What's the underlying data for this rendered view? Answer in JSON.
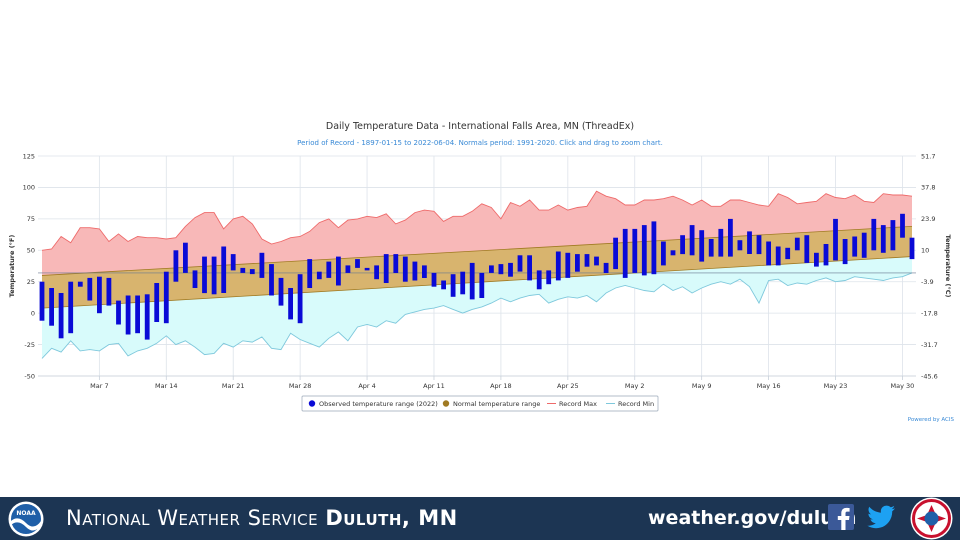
{
  "chart_data": {
    "type": "bar",
    "title": "Daily Temperature Data - International Falls Area, MN (ThreadEx)",
    "subtitle": "Period of Record - 1897-01-15 to 2022-06-04. Normals period: 1991-2020. Click and drag to zoom chart.",
    "ylabel_left": "Temperature (°F)",
    "ylabel_right": "Temperature (°C)",
    "ylim": [
      -50,
      125
    ],
    "yticks_left": [
      125,
      100,
      75,
      50,
      25,
      0,
      -25,
      -50
    ],
    "yticks_right": [
      "51.7",
      "37.8",
      "23.9",
      "10",
      "-3.9",
      "-17.8",
      "-31.7",
      "-45.6"
    ],
    "x_start": "Mar 1",
    "x_ticks": [
      {
        "label": "Mar 7",
        "day": 6
      },
      {
        "label": "Mar 14",
        "day": 13
      },
      {
        "label": "Mar 21",
        "day": 20
      },
      {
        "label": "Mar 28",
        "day": 27
      },
      {
        "label": "Apr 4",
        "day": 34
      },
      {
        "label": "Apr 11",
        "day": 41
      },
      {
        "label": "Apr 18",
        "day": 48
      },
      {
        "label": "Apr 25",
        "day": 55
      },
      {
        "label": "May 2",
        "day": 62
      },
      {
        "label": "May 9",
        "day": 69
      },
      {
        "label": "May 16",
        "day": 76
      },
      {
        "label": "May 23",
        "day": 83
      },
      {
        "label": "May 30",
        "day": 90
      }
    ],
    "freezing_line": 32,
    "normal_range": {
      "start_high": 30,
      "end_high": 69,
      "start_low": 4,
      "end_low": 45
    },
    "record_max": [
      50,
      51,
      61,
      56,
      68,
      68,
      67,
      57,
      63,
      57,
      61,
      60,
      60,
      59,
      60,
      69,
      76,
      80,
      80,
      67,
      75,
      77,
      71,
      59,
      55,
      57,
      60,
      61,
      65,
      72,
      75,
      68,
      74,
      75,
      77,
      76,
      79,
      71,
      74,
      80,
      82,
      81,
      73,
      77,
      77,
      81,
      87,
      84,
      75,
      88,
      85,
      90,
      82,
      82,
      86,
      82,
      84,
      85,
      97,
      93,
      91,
      86,
      86,
      90,
      90,
      91,
      93,
      90,
      86,
      90,
      85,
      85,
      90,
      90,
      88,
      86,
      85,
      95,
      92,
      87,
      88,
      89,
      95,
      92,
      91,
      94,
      89,
      88,
      95,
      94,
      94,
      93
    ],
    "record_min": [
      -36,
      -28,
      -31,
      -22,
      -30,
      -29,
      -30,
      -25,
      -24,
      -34,
      -30,
      -28,
      -24,
      -18,
      -25,
      -22,
      -27,
      -33,
      -32,
      -24,
      -27,
      -22,
      -23,
      -19,
      -28,
      -29,
      -16,
      -21,
      -24,
      -27,
      -20,
      -15,
      -22,
      -11,
      -9,
      -11,
      -6,
      -8,
      -1,
      1,
      3,
      4,
      6,
      3,
      0,
      3,
      5,
      8,
      12,
      9,
      12,
      14,
      15,
      8,
      11,
      13,
      12,
      14,
      9,
      16,
      20,
      22,
      20,
      18,
      17,
      23,
      18,
      21,
      16,
      20,
      23,
      25,
      23,
      27,
      21,
      8,
      26,
      27,
      22,
      24,
      23,
      26,
      28,
      25,
      26,
      29,
      28,
      27,
      26,
      28,
      29,
      32
    ],
    "observed": [
      {
        "low": -6,
        "high": 25
      },
      {
        "low": -10,
        "high": 20
      },
      {
        "low": -20,
        "high": 16
      },
      {
        "low": -16,
        "high": 25
      },
      {
        "low": 21,
        "high": 25
      },
      {
        "low": 10,
        "high": 28
      },
      {
        "low": 0,
        "high": 29
      },
      {
        "low": 6,
        "high": 28
      },
      {
        "low": -9,
        "high": 10
      },
      {
        "low": -17,
        "high": 14
      },
      {
        "low": -16,
        "high": 14
      },
      {
        "low": -21,
        "high": 15
      },
      {
        "low": -7,
        "high": 24
      },
      {
        "low": -8,
        "high": 33
      },
      {
        "low": 25,
        "high": 50
      },
      {
        "low": 32,
        "high": 56
      },
      {
        "low": 20,
        "high": 34
      },
      {
        "low": 16,
        "high": 45
      },
      {
        "low": 15,
        "high": 45
      },
      {
        "low": 16,
        "high": 53
      },
      {
        "low": 34,
        "high": 47
      },
      {
        "low": 32,
        "high": 36
      },
      {
        "low": 31,
        "high": 35
      },
      {
        "low": 28,
        "high": 48
      },
      {
        "low": 14,
        "high": 39
      },
      {
        "low": 6,
        "high": 28
      },
      {
        "low": -5,
        "high": 20
      },
      {
        "low": -8,
        "high": 31
      },
      {
        "low": 20,
        "high": 43
      },
      {
        "low": 27,
        "high": 33
      },
      {
        "low": 28,
        "high": 41
      },
      {
        "low": 22,
        "high": 45
      },
      {
        "low": 32,
        "high": 38
      },
      {
        "low": 36,
        "high": 43
      },
      {
        "low": 34,
        "high": 36
      },
      {
        "low": 27,
        "high": 38
      },
      {
        "low": 24,
        "high": 47
      },
      {
        "low": 32,
        "high": 47
      },
      {
        "low": 25,
        "high": 45
      },
      {
        "low": 26,
        "high": 41
      },
      {
        "low": 28,
        "high": 38
      },
      {
        "low": 21,
        "high": 32
      },
      {
        "low": 19,
        "high": 26
      },
      {
        "low": 13,
        "high": 31
      },
      {
        "low": 15,
        "high": 33
      },
      {
        "low": 11,
        "high": 40
      },
      {
        "low": 12,
        "high": 32
      },
      {
        "low": 32,
        "high": 38
      },
      {
        "low": 31,
        "high": 39
      },
      {
        "low": 29,
        "high": 40
      },
      {
        "low": 33,
        "high": 46
      },
      {
        "low": 26,
        "high": 46
      },
      {
        "low": 19,
        "high": 34
      },
      {
        "low": 23,
        "high": 34
      },
      {
        "low": 26,
        "high": 49
      },
      {
        "low": 28,
        "high": 48
      },
      {
        "low": 33,
        "high": 47
      },
      {
        "low": 37,
        "high": 47
      },
      {
        "low": 38,
        "high": 45
      },
      {
        "low": 32,
        "high": 40
      },
      {
        "low": 35,
        "high": 60
      },
      {
        "low": 28,
        "high": 67
      },
      {
        "low": 32,
        "high": 67
      },
      {
        "low": 30,
        "high": 70
      },
      {
        "low": 31,
        "high": 73
      },
      {
        "low": 38,
        "high": 57
      },
      {
        "low": 46,
        "high": 50
      },
      {
        "low": 47,
        "high": 62
      },
      {
        "low": 46,
        "high": 70
      },
      {
        "low": 41,
        "high": 66
      },
      {
        "low": 45,
        "high": 59
      },
      {
        "low": 45,
        "high": 67
      },
      {
        "low": 45,
        "high": 75
      },
      {
        "low": 50,
        "high": 58
      },
      {
        "low": 47,
        "high": 65
      },
      {
        "low": 47,
        "high": 62
      },
      {
        "low": 38,
        "high": 57
      },
      {
        "low": 38,
        "high": 53
      },
      {
        "low": 43,
        "high": 52
      },
      {
        "low": 50,
        "high": 60
      },
      {
        "low": 40,
        "high": 62
      },
      {
        "low": 37,
        "high": 48
      },
      {
        "low": 38,
        "high": 55
      },
      {
        "low": 42,
        "high": 75
      },
      {
        "low": 39,
        "high": 59
      },
      {
        "low": 45,
        "high": 61
      },
      {
        "low": 44,
        "high": 64
      },
      {
        "low": 50,
        "high": 75
      },
      {
        "low": 48,
        "high": 70
      },
      {
        "low": 50,
        "high": 74
      },
      {
        "low": 60,
        "high": 79
      },
      {
        "low": 43,
        "high": 60
      }
    ],
    "legend": [
      "Observed temperature range (2022)",
      "Normal temperature range",
      "Record Max",
      "Record Min"
    ],
    "legend_placement": "bottom",
    "credit": "Powered by ACIS",
    "colors": {
      "observed": "#0a0ad6",
      "normal_fill": "#d8b46e",
      "normal_line": "#a07a22",
      "record_max_fill": "#f8b8b8",
      "record_max_line": "#ee6a6a",
      "record_min_fill": "#d8fbfb",
      "record_min_line": "#7ec8dc",
      "grid": "#dde3ea"
    }
  },
  "footer": {
    "org_prefix": "National Weather Service",
    "org_office": "Duluth, MN",
    "url": "weather.gov/duluth",
    "noaa_logo_text": "NOAA",
    "bg_color": "#1c3553"
  }
}
